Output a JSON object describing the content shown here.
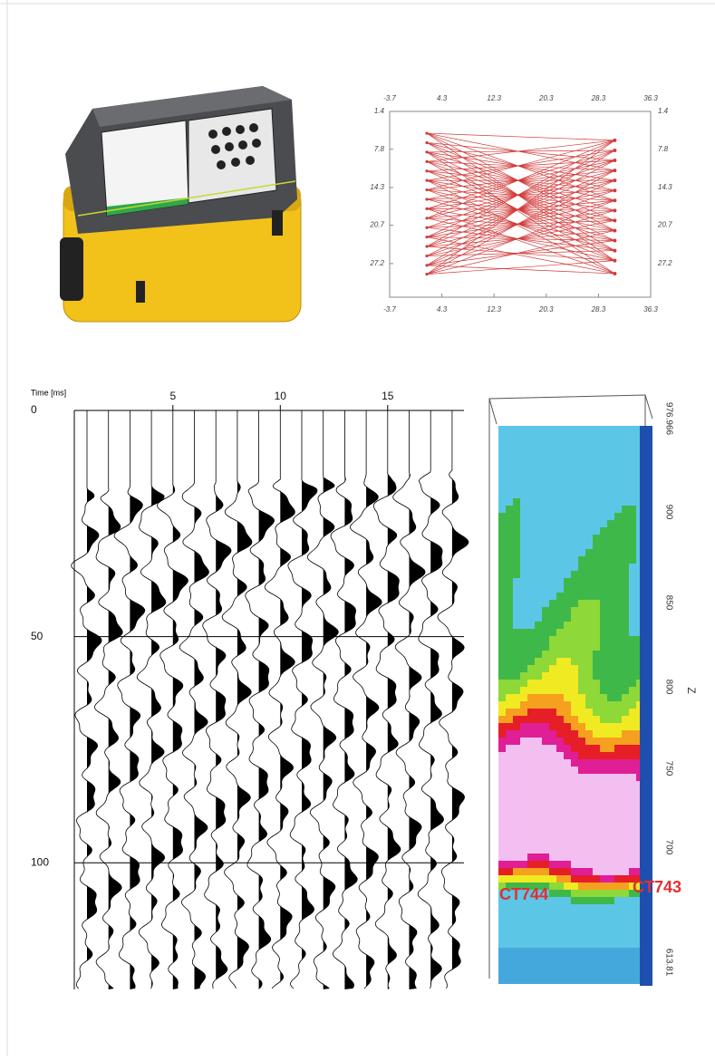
{
  "ray_plot": {
    "xlim": [
      -3.7,
      36.3
    ],
    "ylim": [
      1.4,
      32.9
    ],
    "xticks": [
      -3.7,
      4.3,
      12.3,
      20.3,
      28.3,
      36.3
    ],
    "yticks": [
      1.4,
      7.8,
      14.3,
      20.7,
      27.2
    ],
    "color": "#d23a3a",
    "sources": {
      "x": 2.0,
      "y": [
        5.1,
        6.7,
        8.3,
        9.9,
        11.5,
        13.1,
        14.7,
        16.3,
        17.9,
        19.5,
        21.1,
        22.7,
        24.3,
        25.9,
        27.5,
        29.0
      ]
    },
    "receivers": {
      "x": 30.8,
      "y": [
        6.3,
        8.0,
        9.7,
        11.4,
        13.1,
        14.8,
        16.5,
        18.2,
        19.9,
        21.6,
        23.3,
        25.0,
        26.7,
        28.9
      ]
    }
  },
  "seismic": {
    "time_label": "Time [ms]",
    "time_range": [
      0,
      128
    ],
    "time_ticks": [
      0,
      50,
      100
    ],
    "trace_range": [
      1,
      18
    ],
    "trace_ticks": [
      5,
      10,
      15
    ]
  },
  "tomogram": {
    "wells": [
      "CT744",
      "CT743"
    ],
    "z_label": "Z",
    "z_ticks": [
      "976.966",
      "900",
      "850",
      "800",
      "750",
      "700",
      "613.81"
    ]
  }
}
